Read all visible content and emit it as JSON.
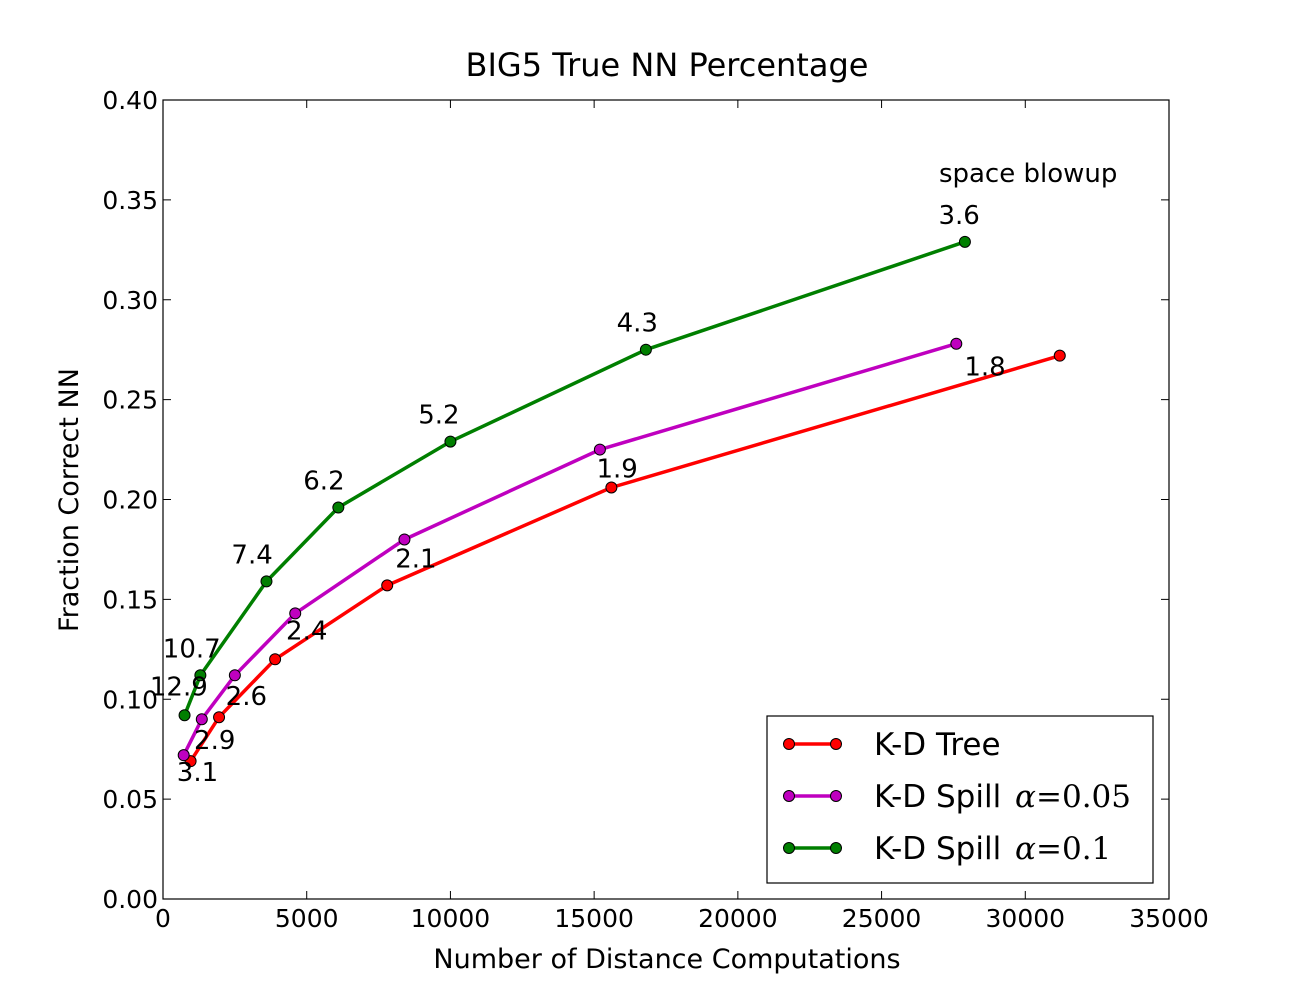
{
  "chart_data": {
    "type": "line",
    "title": "BIG5 True NN Percentage",
    "xlabel": "Number of Distance Computations",
    "ylabel": "Fraction Correct NN",
    "xlim": [
      0,
      35000
    ],
    "ylim": [
      0.0,
      0.4
    ],
    "xticks": [
      0,
      5000,
      10000,
      15000,
      20000,
      25000,
      30000,
      35000
    ],
    "xtick_labels": [
      "0",
      "5000",
      "10000",
      "15000",
      "20000",
      "25000",
      "30000",
      "35000"
    ],
    "yticks": [
      0.0,
      0.05,
      0.1,
      0.15,
      0.2,
      0.25,
      0.3,
      0.35,
      0.4
    ],
    "ytick_labels": [
      "0.00",
      "0.05",
      "0.10",
      "0.15",
      "0.20",
      "0.25",
      "0.30",
      "0.35",
      "0.40"
    ],
    "grid": false,
    "legend_position": "lower-right",
    "series": [
      {
        "name": "K-D Tree",
        "legend_prefix": "K-D Tree",
        "legend_alpha": "",
        "legend_eq": "",
        "legend_value": "",
        "color": "#ff0000",
        "x": [
          960,
          1950,
          3900,
          7800,
          15600,
          31200
        ],
        "y": [
          0.069,
          0.091,
          0.12,
          0.157,
          0.206,
          0.272
        ]
      },
      {
        "name": "K-D Spill α=0.05",
        "legend_prefix": "K-D Spill ",
        "legend_alpha": "α",
        "legend_eq": "=",
        "legend_value": "0.05",
        "color": "#bf00bf",
        "x": [
          720,
          1350,
          2500,
          4600,
          8400,
          15200,
          27600
        ],
        "y": [
          0.072,
          0.09,
          0.112,
          0.143,
          0.18,
          0.225,
          0.278
        ]
      },
      {
        "name": "K-D Spill α=0.1",
        "legend_prefix": "K-D Spill ",
        "legend_alpha": "α",
        "legend_eq": "=",
        "legend_value": "0.1",
        "color": "#007f00",
        "x": [
          750,
          1300,
          3600,
          6100,
          10000,
          16800,
          27900
        ],
        "y": [
          0.092,
          0.112,
          0.159,
          0.196,
          0.229,
          0.275,
          0.329
        ]
      }
    ],
    "point_labels": [
      {
        "text": "3.1",
        "x": 1200,
        "y": 0.059
      },
      {
        "text": "2.9",
        "x": 1800,
        "y": 0.075
      },
      {
        "text": "2.6",
        "x": 2900,
        "y": 0.097
      },
      {
        "text": "2.4",
        "x": 5000,
        "y": 0.13
      },
      {
        "text": "2.1",
        "x": 8800,
        "y": 0.166
      },
      {
        "text": "1.9",
        "x": 15800,
        "y": 0.211
      },
      {
        "text": "1.8",
        "x": 28600,
        "y": 0.262
      },
      {
        "text": "12.9",
        "x": 550,
        "y": 0.102
      },
      {
        "text": "10.7",
        "x": 1000,
        "y": 0.121
      },
      {
        "text": "7.4",
        "x": 3100,
        "y": 0.168
      },
      {
        "text": "6.2",
        "x": 5600,
        "y": 0.205
      },
      {
        "text": "5.2",
        "x": 9600,
        "y": 0.238
      },
      {
        "text": "4.3",
        "x": 16500,
        "y": 0.284
      },
      {
        "text": "3.6",
        "x": 27700,
        "y": 0.338
      }
    ],
    "annotations": [
      {
        "text": "space blowup",
        "x": 30100,
        "y": 0.359
      }
    ]
  }
}
